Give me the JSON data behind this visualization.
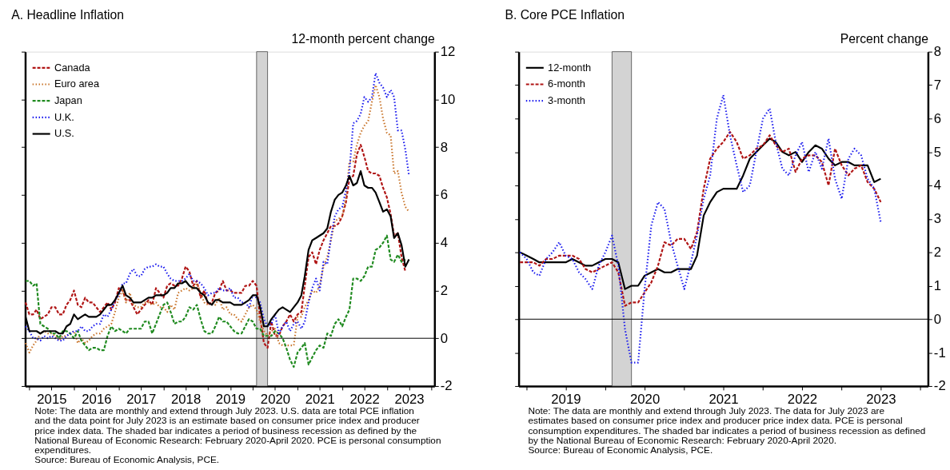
{
  "chart_data": [
    {
      "type": "line",
      "title": "A. Headline Inflation",
      "ylabel": "12-month percent change",
      "x": [
        "2014-12",
        "2015-01",
        "2015-02",
        "2015-03",
        "2015-04",
        "2015-05",
        "2015-06",
        "2015-07",
        "2015-08",
        "2015-09",
        "2015-10",
        "2015-11",
        "2015-12",
        "2016-01",
        "2016-02",
        "2016-03",
        "2016-04",
        "2016-05",
        "2016-06",
        "2016-07",
        "2016-08",
        "2016-09",
        "2016-10",
        "2016-11",
        "2016-12",
        "2017-01",
        "2017-02",
        "2017-03",
        "2017-04",
        "2017-05",
        "2017-06",
        "2017-07",
        "2017-08",
        "2017-09",
        "2017-10",
        "2017-11",
        "2017-12",
        "2018-01",
        "2018-02",
        "2018-03",
        "2018-04",
        "2018-05",
        "2018-06",
        "2018-07",
        "2018-08",
        "2018-09",
        "2018-10",
        "2018-11",
        "2018-12",
        "2019-01",
        "2019-02",
        "2019-03",
        "2019-04",
        "2019-05",
        "2019-06",
        "2019-07",
        "2019-08",
        "2019-09",
        "2019-10",
        "2019-11",
        "2019-12",
        "2020-01",
        "2020-02",
        "2020-03",
        "2020-04",
        "2020-05",
        "2020-06",
        "2020-07",
        "2020-08",
        "2020-09",
        "2020-10",
        "2020-11",
        "2020-12",
        "2021-01",
        "2021-02",
        "2021-03",
        "2021-04",
        "2021-05",
        "2021-06",
        "2021-07",
        "2021-08",
        "2021-09",
        "2021-10",
        "2021-11",
        "2021-12",
        "2022-01",
        "2022-02",
        "2022-03",
        "2022-04",
        "2022-05",
        "2022-06",
        "2022-07",
        "2022-08",
        "2022-09",
        "2022-10",
        "2022-11",
        "2022-12",
        "2023-01",
        "2023-02",
        "2023-03",
        "2023-04",
        "2023-05",
        "2023-06",
        "2023-07"
      ],
      "series": [
        {
          "name": "Canada",
          "color": "#b01515",
          "line_style": "dashed",
          "values": [
            1.5,
            1.0,
            1.0,
            1.2,
            0.8,
            0.9,
            1.0,
            1.3,
            1.3,
            1.0,
            1.0,
            1.4,
            1.6,
            2.0,
            1.4,
            1.3,
            1.7,
            1.5,
            1.5,
            1.3,
            1.1,
            1.3,
            1.5,
            1.2,
            1.5,
            2.1,
            2.0,
            1.6,
            1.6,
            1.3,
            1.0,
            1.2,
            1.4,
            1.6,
            1.4,
            2.1,
            1.9,
            1.7,
            2.2,
            2.3,
            2.2,
            2.2,
            2.5,
            3.0,
            2.8,
            2.2,
            2.4,
            1.7,
            2.0,
            1.4,
            1.5,
            1.9,
            2.0,
            2.4,
            2.0,
            2.0,
            1.9,
            1.9,
            1.9,
            2.2,
            2.2,
            2.4,
            2.2,
            0.9,
            -0.2,
            -0.4,
            0.7,
            0.1,
            0.1,
            0.5,
            0.7,
            1.0,
            0.7,
            1.0,
            1.1,
            2.2,
            3.4,
            3.6,
            3.1,
            3.7,
            4.1,
            4.4,
            4.7,
            4.7,
            4.8,
            5.1,
            5.7,
            6.7,
            6.8,
            7.7,
            8.1,
            7.6,
            7.0,
            6.9,
            6.9,
            6.8,
            6.3,
            5.9,
            5.2,
            4.3,
            4.4,
            3.4,
            2.8,
            null
          ]
        },
        {
          "name": "Euro area",
          "color": "#c87328",
          "line_style": "dotted",
          "values": [
            -0.2,
            -0.6,
            -0.3,
            -0.1,
            0.2,
            0.3,
            0.2,
            0.2,
            0.1,
            -0.1,
            0.1,
            0.1,
            0.2,
            0.3,
            -0.2,
            0.0,
            -0.2,
            -0.1,
            0.1,
            0.2,
            0.2,
            0.4,
            0.5,
            0.6,
            1.1,
            1.7,
            2.0,
            1.5,
            1.9,
            1.4,
            1.3,
            1.3,
            1.5,
            1.5,
            1.4,
            1.5,
            1.3,
            1.3,
            1.1,
            1.4,
            1.2,
            1.9,
            2.0,
            2.1,
            2.0,
            2.1,
            2.3,
            1.9,
            1.5,
            1.4,
            1.5,
            1.4,
            1.7,
            1.2,
            1.3,
            1.0,
            1.0,
            0.8,
            0.7,
            1.0,
            1.3,
            1.4,
            1.2,
            0.7,
            0.3,
            0.1,
            0.3,
            0.4,
            -0.2,
            -0.3,
            -0.3,
            -0.3,
            -0.3,
            0.9,
            0.9,
            1.3,
            1.6,
            2.0,
            1.9,
            2.2,
            3.0,
            3.4,
            4.1,
            4.9,
            5.0,
            5.1,
            5.9,
            7.4,
            7.4,
            8.1,
            8.6,
            8.9,
            9.1,
            9.9,
            10.6,
            10.1,
            9.2,
            8.6,
            8.5,
            6.9,
            7.0,
            6.1,
            5.5,
            5.3
          ]
        },
        {
          "name": "Japan",
          "color": "#1f8a1f",
          "line_style": "dashed",
          "values": [
            2.4,
            2.4,
            2.2,
            2.3,
            0.6,
            0.5,
            0.4,
            0.2,
            0.2,
            0.0,
            0.3,
            0.3,
            0.2,
            0.0,
            0.3,
            -0.1,
            -0.3,
            -0.5,
            -0.4,
            -0.4,
            -0.5,
            -0.5,
            0.1,
            0.5,
            0.3,
            0.4,
            0.3,
            0.2,
            0.4,
            0.4,
            0.4,
            0.4,
            0.7,
            0.7,
            0.2,
            0.6,
            1.0,
            1.4,
            1.5,
            1.1,
            0.6,
            0.7,
            0.7,
            0.9,
            1.3,
            1.2,
            1.4,
            0.8,
            0.3,
            0.2,
            0.2,
            0.5,
            0.9,
            0.7,
            0.7,
            0.5,
            0.3,
            0.2,
            0.2,
            0.5,
            0.8,
            0.7,
            0.4,
            0.4,
            0.1,
            0.1,
            0.1,
            0.3,
            0.2,
            0.0,
            -0.4,
            -0.9,
            -1.2,
            -0.6,
            -0.4,
            -0.2,
            -1.1,
            -0.8,
            -0.5,
            -0.3,
            -0.4,
            0.2,
            0.1,
            0.6,
            0.8,
            0.5,
            0.9,
            1.2,
            2.5,
            2.5,
            2.4,
            2.6,
            3.0,
            3.0,
            3.7,
            3.8,
            4.0,
            4.3,
            3.3,
            3.2,
            3.5,
            3.2,
            3.3,
            null
          ]
        },
        {
          "name": "U.K.",
          "color": "#1a1aee",
          "line_style": "dotted",
          "values": [
            0.5,
            0.3,
            0.0,
            0.0,
            -0.1,
            0.1,
            0.0,
            0.1,
            0.0,
            -0.1,
            -0.1,
            0.1,
            0.2,
            0.3,
            0.3,
            0.5,
            0.3,
            0.3,
            0.5,
            0.6,
            0.6,
            1.0,
            0.9,
            1.2,
            1.6,
            1.8,
            2.3,
            2.3,
            2.7,
            2.9,
            2.6,
            2.6,
            2.9,
            3.0,
            3.0,
            3.1,
            3.0,
            3.0,
            2.7,
            2.5,
            2.4,
            2.4,
            2.4,
            2.5,
            2.7,
            2.4,
            2.4,
            2.3,
            2.1,
            1.8,
            1.9,
            1.9,
            2.1,
            2.0,
            2.0,
            2.1,
            1.7,
            1.7,
            1.5,
            1.5,
            1.3,
            1.8,
            1.7,
            1.5,
            0.8,
            0.5,
            0.6,
            1.0,
            0.2,
            0.5,
            0.7,
            0.3,
            0.6,
            0.7,
            0.4,
            0.7,
            1.5,
            2.1,
            2.5,
            2.0,
            3.2,
            3.1,
            4.2,
            5.1,
            5.4,
            5.5,
            6.2,
            7.0,
            9.0,
            9.1,
            9.4,
            10.1,
            9.9,
            10.1,
            11.1,
            10.7,
            10.5,
            10.1,
            10.4,
            10.1,
            8.7,
            8.7,
            7.9,
            6.8
          ]
        },
        {
          "name": "U.S.",
          "color": "#000000",
          "line_style": "solid",
          "values": [
            0.9,
            0.3,
            0.3,
            0.3,
            0.2,
            0.3,
            0.3,
            0.3,
            0.3,
            0.2,
            0.2,
            0.5,
            0.6,
            1.0,
            0.8,
            0.9,
            1.0,
            0.9,
            0.9,
            0.9,
            1.0,
            1.2,
            1.4,
            1.4,
            1.6,
            1.9,
            2.2,
            1.8,
            1.7,
            1.5,
            1.5,
            1.5,
            1.6,
            1.7,
            1.7,
            1.8,
            1.8,
            1.8,
            1.9,
            2.1,
            2.1,
            2.3,
            2.3,
            2.4,
            2.2,
            2.1,
            2.1,
            1.9,
            1.8,
            1.5,
            1.4,
            1.6,
            1.6,
            1.5,
            1.5,
            1.5,
            1.4,
            1.4,
            1.4,
            1.5,
            1.6,
            1.8,
            1.8,
            1.3,
            0.5,
            0.5,
            0.8,
            1.0,
            1.2,
            1.3,
            1.2,
            1.1,
            1.3,
            1.5,
            1.8,
            2.6,
            3.7,
            4.1,
            4.2,
            4.3,
            4.4,
            4.6,
            5.3,
            5.8,
            6.0,
            6.1,
            6.4,
            6.8,
            6.4,
            6.5,
            7.0,
            6.4,
            6.3,
            6.3,
            6.1,
            5.7,
            5.3,
            5.4,
            5.1,
            4.2,
            4.4,
            3.9,
            3.0,
            3.3
          ]
        }
      ],
      "xlim": [
        "2014-11-28",
        "2024-01-25"
      ],
      "xticks": [
        {
          "value": "2015-01",
          "label": null
        },
        {
          "value": "2015-07",
          "label": "2015"
        },
        {
          "value": "2016-01",
          "label": null
        },
        {
          "value": "2016-07",
          "label": "2016"
        },
        {
          "value": "2017-01",
          "label": null
        },
        {
          "value": "2017-07",
          "label": "2017"
        },
        {
          "value": "2018-01",
          "label": null
        },
        {
          "value": "2018-07",
          "label": "2018"
        },
        {
          "value": "2019-01",
          "label": null
        },
        {
          "value": "2019-07",
          "label": "2019"
        },
        {
          "value": "2020-01",
          "label": null
        },
        {
          "value": "2020-07",
          "label": "2020"
        },
        {
          "value": "2021-01",
          "label": null
        },
        {
          "value": "2021-07",
          "label": "2021"
        },
        {
          "value": "2022-01",
          "label": null
        },
        {
          "value": "2022-07",
          "label": "2022"
        },
        {
          "value": "2023-01",
          "label": null
        },
        {
          "value": "2023-07",
          "label": "2023"
        },
        {
          "value": "2024-01",
          "label": null
        }
      ],
      "ylim": [
        -2,
        12
      ],
      "yticks": [
        -2,
        0,
        2,
        4,
        6,
        8,
        10,
        12
      ],
      "ref_lines": [
        {
          "axis": "y",
          "value": 0,
          "color": "#000000"
        }
      ],
      "bands": [
        {
          "axis": "x",
          "from": "2020-02",
          "to": "2020-05",
          "color": "#d3d3d3"
        }
      ],
      "grid": false,
      "legend": "top left",
      "marker": "none",
      "annotations": [
        "Note: The data are monthly and extend through July 2023. U.S. data are total PCE inflation and the data point for July 2023 is an estimate based on consumer price index and producer price index data. The shaded bar indicates a period of business recession as defined by the National Bureau of Economic Research: February 2020-April 2020. PCE is personal consumption expenditures.",
        "Source: Bureau of Economic Analysis, PCE."
      ]
    },
    {
      "type": "line",
      "title": "B. Core PCE Inflation",
      "ylabel": "Percent change",
      "x": [
        "2018-12",
        "2019-01",
        "2019-02",
        "2019-03",
        "2019-04",
        "2019-05",
        "2019-06",
        "2019-07",
        "2019-08",
        "2019-09",
        "2019-10",
        "2019-11",
        "2019-12",
        "2020-01",
        "2020-02",
        "2020-03",
        "2020-04",
        "2020-05",
        "2020-06",
        "2020-07",
        "2020-08",
        "2020-09",
        "2020-10",
        "2020-11",
        "2020-12",
        "2021-01",
        "2021-02",
        "2021-03",
        "2021-04",
        "2021-05",
        "2021-06",
        "2021-07",
        "2021-08",
        "2021-09",
        "2021-10",
        "2021-11",
        "2021-12",
        "2022-01",
        "2022-02",
        "2022-03",
        "2022-04",
        "2022-05",
        "2022-06",
        "2022-07",
        "2022-08",
        "2022-09",
        "2022-10",
        "2022-11",
        "2022-12",
        "2023-01",
        "2023-02",
        "2023-03",
        "2023-04",
        "2023-05",
        "2023-06",
        "2023-07"
      ],
      "series": [
        {
          "name": "12-month",
          "color": "#000000",
          "line_style": "solid",
          "values": [
            2.0,
            1.9,
            1.8,
            1.7,
            1.7,
            1.7,
            1.7,
            1.7,
            1.8,
            1.7,
            1.6,
            1.6,
            1.7,
            1.8,
            1.8,
            1.7,
            0.9,
            1.0,
            1.0,
            1.3,
            1.4,
            1.5,
            1.4,
            1.4,
            1.5,
            1.5,
            1.5,
            1.9,
            3.1,
            3.5,
            3.8,
            3.9,
            3.9,
            3.9,
            4.3,
            4.8,
            5.0,
            5.2,
            5.4,
            5.3,
            5.0,
            4.9,
            5.0,
            4.7,
            5.0,
            5.2,
            5.1,
            4.8,
            4.6,
            4.7,
            4.7,
            4.6,
            4.6,
            4.6,
            4.1,
            4.2
          ]
        },
        {
          "name": "6-month",
          "color": "#b01515",
          "line_style": "dashed",
          "values": [
            1.7,
            1.7,
            1.7,
            1.6,
            1.8,
            1.8,
            1.9,
            1.9,
            1.9,
            1.8,
            1.5,
            1.4,
            1.5,
            1.6,
            1.7,
            1.4,
            0.4,
            0.5,
            0.5,
            0.8,
            1.1,
            1.6,
            2.3,
            2.2,
            2.4,
            2.4,
            2.1,
            2.6,
            3.9,
            4.8,
            5.1,
            5.3,
            5.6,
            5.3,
            4.8,
            4.9,
            5.1,
            5.2,
            5.5,
            5.2,
            5.0,
            5.1,
            4.4,
            4.8,
            4.9,
            4.9,
            4.7,
            4.0,
            5.1,
            4.6,
            4.3,
            4.5,
            4.6,
            4.1,
            3.9,
            3.5
          ]
        },
        {
          "name": "3-month",
          "color": "#1a1aee",
          "line_style": "dotted",
          "values": [
            2.0,
            1.8,
            1.4,
            1.3,
            1.8,
            2.0,
            2.3,
            1.9,
            1.8,
            1.4,
            1.2,
            0.9,
            1.6,
            2.0,
            2.5,
            1.6,
            -0.3,
            -1.3,
            -1.3,
            0.9,
            2.8,
            3.5,
            3.3,
            2.3,
            1.6,
            0.9,
            1.7,
            2.5,
            3.6,
            4.3,
            6.0,
            6.7,
            5.5,
            4.6,
            3.8,
            4.0,
            5.0,
            6.0,
            6.3,
            5.3,
            4.5,
            4.3,
            4.9,
            5.3,
            4.4,
            5.0,
            4.5,
            5.4,
            4.2,
            3.6,
            4.8,
            5.1,
            4.9,
            4.2,
            3.9,
            2.9
          ]
        }
      ],
      "xlim": [
        "2018-11-25",
        "2024-02-05"
      ],
      "xticks": [
        {
          "value": "2019-01",
          "label": null
        },
        {
          "value": "2019-07",
          "label": "2019"
        },
        {
          "value": "2020-01",
          "label": null
        },
        {
          "value": "2020-07",
          "label": "2020"
        },
        {
          "value": "2021-01",
          "label": null
        },
        {
          "value": "2021-07",
          "label": "2021"
        },
        {
          "value": "2022-01",
          "label": null
        },
        {
          "value": "2022-07",
          "label": "2022"
        },
        {
          "value": "2023-01",
          "label": null
        },
        {
          "value": "2023-07",
          "label": "2023"
        },
        {
          "value": "2024-01",
          "label": null
        }
      ],
      "ylim": [
        -2,
        8
      ],
      "yticks": [
        -2,
        -1,
        0,
        1,
        2,
        3,
        4,
        5,
        6,
        7,
        8
      ],
      "ref_lines": [
        {
          "axis": "y",
          "value": 0,
          "color": "#000000"
        }
      ],
      "bands": [
        {
          "axis": "x",
          "from": "2020-02",
          "to": "2020-05",
          "color": "#d3d3d3"
        }
      ],
      "grid": false,
      "legend": "top left",
      "marker": "none",
      "annotations": [
        "Note: The data are monthly and extend through July 2023. The data for July 2023 are estimates based on consumer price index and producer price index data. PCE is personal consumption expenditures. The shaded bar indicates a period of business recession as defined by the National Bureau of Economic Research: February 2020-April 2020.",
        "Source: Bureau of Economic Analysis, PCE."
      ]
    }
  ]
}
